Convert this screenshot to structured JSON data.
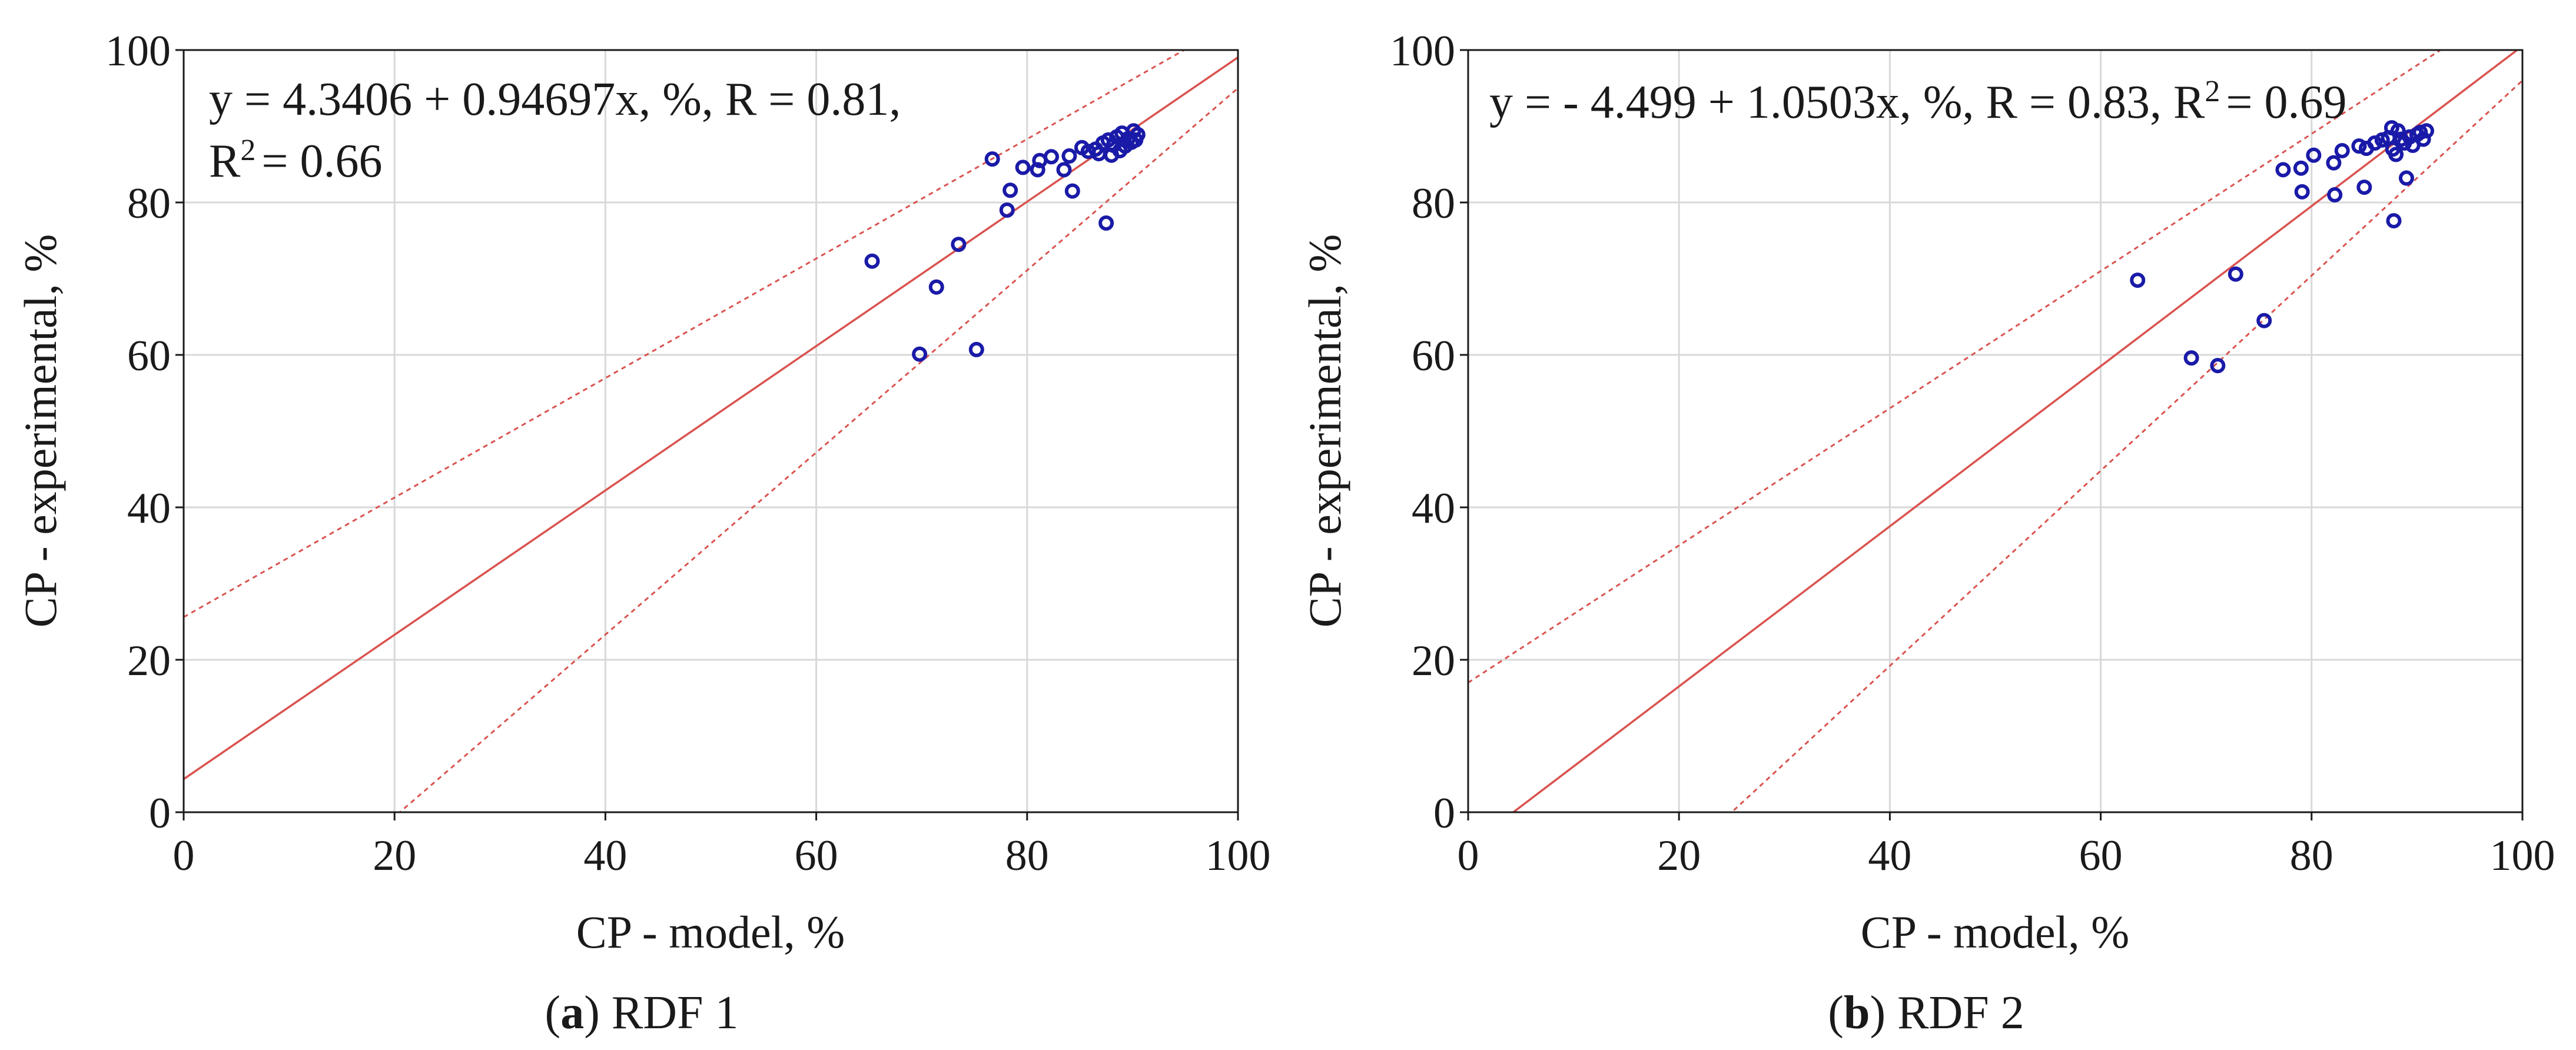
{
  "chart_data": [
    {
      "type": "scatter",
      "panel_id": "a",
      "caption_letter": "a",
      "caption_text": "RDF 1",
      "xlabel": "CP - model, %",
      "ylabel": "CP - experimental, %",
      "xlim": [
        0,
        100
      ],
      "ylim": [
        0,
        100
      ],
      "xticks": [
        0,
        20,
        40,
        60,
        80,
        100
      ],
      "yticks": [
        0,
        20,
        40,
        60,
        80,
        100
      ],
      "grid": true,
      "equation_line1": "y = 4.3406 + 0.94697x, %, R = 0.81,",
      "equation_line2": "= 0.66",
      "r2_symbol": "R",
      "r2_sup": "2",
      "fit": {
        "intercept": 4.3406,
        "slope": 0.94697
      },
      "ci_lower": [
        [
          0,
          -24.5
        ],
        [
          100,
          95.0
        ]
      ],
      "ci_upper": [
        [
          0,
          25.6
        ],
        [
          100,
          104.0
        ]
      ],
      "points": [
        [
          65.3,
          72.3
        ],
        [
          69.8,
          60.1
        ],
        [
          71.4,
          68.9
        ],
        [
          73.5,
          74.5
        ],
        [
          75.2,
          60.7
        ],
        [
          76.7,
          85.7
        ],
        [
          78.1,
          79.0
        ],
        [
          78.4,
          81.6
        ],
        [
          79.6,
          84.6
        ],
        [
          81.0,
          84.3
        ],
        [
          81.2,
          85.5
        ],
        [
          82.3,
          86.0
        ],
        [
          83.5,
          84.3
        ],
        [
          84.0,
          86.1
        ],
        [
          84.3,
          81.5
        ],
        [
          85.2,
          87.2
        ],
        [
          85.8,
          86.7
        ],
        [
          86.5,
          87.0
        ],
        [
          86.8,
          86.4
        ],
        [
          87.2,
          87.8
        ],
        [
          87.5,
          77.3
        ],
        [
          87.7,
          88.2
        ],
        [
          88.0,
          86.2
        ],
        [
          88.2,
          87.5
        ],
        [
          88.5,
          88.6
        ],
        [
          88.8,
          86.8
        ],
        [
          89.0,
          89.1
        ],
        [
          89.3,
          87.4
        ],
        [
          89.6,
          88.4
        ],
        [
          89.9,
          87.9
        ],
        [
          90.1,
          89.4
        ],
        [
          90.3,
          88.2
        ],
        [
          90.5,
          88.9
        ]
      ]
    },
    {
      "type": "scatter",
      "panel_id": "b",
      "caption_letter": "b",
      "caption_text": "RDF 2",
      "xlabel": "CP - model, %",
      "ylabel": "CP - experimental, %",
      "xlim": [
        0,
        100
      ],
      "ylim": [
        0,
        100
      ],
      "xticks": [
        0,
        20,
        40,
        60,
        80,
        100
      ],
      "yticks": [
        0,
        20,
        40,
        60,
        80,
        100
      ],
      "grid": true,
      "equation_line1": "y = - 4.499 + 1.0503x, %, R = 0.83,",
      "equation_line2": "= 0.69",
      "r2_symbol": "R",
      "r2_sup": "2",
      "fit": {
        "intercept": -4.499,
        "slope": 1.0503
      },
      "ci_lower": [
        [
          0,
          -32.0
        ],
        [
          100,
          96.0
        ]
      ],
      "ci_upper": [
        [
          0,
          17.0
        ],
        [
          100,
          107.0
        ]
      ],
      "points": [
        [
          63.5,
          69.8
        ],
        [
          68.6,
          59.6
        ],
        [
          71.1,
          58.6
        ],
        [
          72.8,
          70.6
        ],
        [
          75.5,
          64.5
        ],
        [
          77.3,
          84.3
        ],
        [
          79.0,
          84.5
        ],
        [
          79.1,
          81.4
        ],
        [
          80.2,
          86.2
        ],
        [
          82.1,
          85.2
        ],
        [
          82.2,
          81.0
        ],
        [
          82.9,
          86.8
        ],
        [
          84.5,
          87.4
        ],
        [
          85.0,
          82.0
        ],
        [
          85.2,
          87.1
        ],
        [
          86.0,
          87.8
        ],
        [
          86.7,
          88.2
        ],
        [
          87.3,
          88.5
        ],
        [
          87.6,
          89.8
        ],
        [
          87.7,
          87.0
        ],
        [
          87.8,
          77.6
        ],
        [
          88.0,
          86.3
        ],
        [
          88.2,
          89.4
        ],
        [
          88.5,
          88.3
        ],
        [
          88.8,
          87.8
        ],
        [
          89.0,
          83.2
        ],
        [
          89.3,
          88.6
        ],
        [
          89.6,
          87.5
        ],
        [
          90.0,
          88.9
        ],
        [
          90.3,
          89.2
        ],
        [
          90.6,
          88.3
        ],
        [
          90.9,
          89.4
        ]
      ]
    }
  ]
}
